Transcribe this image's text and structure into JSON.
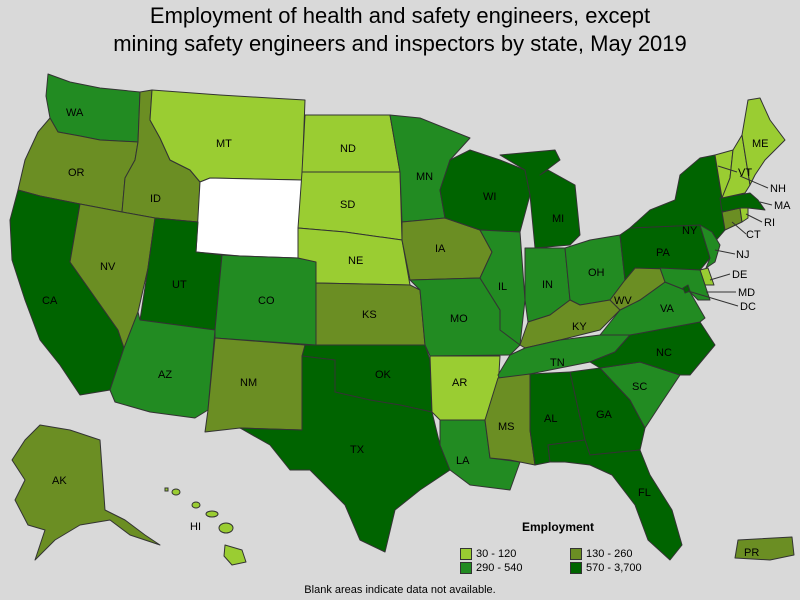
{
  "title": {
    "line1": "Employment of health and safety engineers, except",
    "line2": "mining safety engineers and inspectors by state, May 2019"
  },
  "colors": {
    "c1": "#9acd32",
    "c2": "#6b8e23",
    "c3": "#228b22",
    "c4": "#006400",
    "blank": "#ffffff",
    "border": "#333333"
  },
  "legend": {
    "title": "Employment",
    "items": [
      {
        "label": "30 - 120",
        "color": "#9acd32"
      },
      {
        "label": "130 - 260",
        "color": "#6b8e23"
      },
      {
        "label": "290 - 540",
        "color": "#228b22"
      },
      {
        "label": "570 - 3,700",
        "color": "#006400"
      }
    ]
  },
  "footnote": "Blank areas indicate data not available.",
  "states": [
    {
      "abbr": "WA",
      "bin": "c3"
    },
    {
      "abbr": "OR",
      "bin": "c2"
    },
    {
      "abbr": "CA",
      "bin": "c4"
    },
    {
      "abbr": "ID",
      "bin": "c2"
    },
    {
      "abbr": "NV",
      "bin": "c2"
    },
    {
      "abbr": "MT",
      "bin": "c1"
    },
    {
      "abbr": "WY",
      "bin": "blank"
    },
    {
      "abbr": "UT",
      "bin": "c4"
    },
    {
      "abbr": "AZ",
      "bin": "c3"
    },
    {
      "abbr": "CO",
      "bin": "c3"
    },
    {
      "abbr": "NM",
      "bin": "c2"
    },
    {
      "abbr": "ND",
      "bin": "c1"
    },
    {
      "abbr": "SD",
      "bin": "c1"
    },
    {
      "abbr": "NE",
      "bin": "c1"
    },
    {
      "abbr": "KS",
      "bin": "c2"
    },
    {
      "abbr": "OK",
      "bin": "c4"
    },
    {
      "abbr": "TX",
      "bin": "c4"
    },
    {
      "abbr": "MN",
      "bin": "c3"
    },
    {
      "abbr": "IA",
      "bin": "c2"
    },
    {
      "abbr": "MO",
      "bin": "c3"
    },
    {
      "abbr": "AR",
      "bin": "c1"
    },
    {
      "abbr": "LA",
      "bin": "c3"
    },
    {
      "abbr": "WI",
      "bin": "c4"
    },
    {
      "abbr": "IL",
      "bin": "c3"
    },
    {
      "abbr": "MI",
      "bin": "c4"
    },
    {
      "abbr": "IN",
      "bin": "c3"
    },
    {
      "abbr": "OH",
      "bin": "c3"
    },
    {
      "abbr": "KY",
      "bin": "c2"
    },
    {
      "abbr": "TN",
      "bin": "c3"
    },
    {
      "abbr": "MS",
      "bin": "c2"
    },
    {
      "abbr": "AL",
      "bin": "c4"
    },
    {
      "abbr": "GA",
      "bin": "c4"
    },
    {
      "abbr": "FL",
      "bin": "c4"
    },
    {
      "abbr": "SC",
      "bin": "c3"
    },
    {
      "abbr": "NC",
      "bin": "c4"
    },
    {
      "abbr": "VA",
      "bin": "c3"
    },
    {
      "abbr": "WV",
      "bin": "c2"
    },
    {
      "abbr": "PA",
      "bin": "c4"
    },
    {
      "abbr": "NY",
      "bin": "c4"
    },
    {
      "abbr": "NJ",
      "bin": "c3"
    },
    {
      "abbr": "DE",
      "bin": "c1"
    },
    {
      "abbr": "MD",
      "bin": "c3"
    },
    {
      "abbr": "DC",
      "bin": "c4"
    },
    {
      "abbr": "CT",
      "bin": "c2"
    },
    {
      "abbr": "RI",
      "bin": "c1"
    },
    {
      "abbr": "MA",
      "bin": "c4"
    },
    {
      "abbr": "VT",
      "bin": "c1"
    },
    {
      "abbr": "NH",
      "bin": "c1"
    },
    {
      "abbr": "ME",
      "bin": "c1"
    },
    {
      "abbr": "AK",
      "bin": "c2"
    },
    {
      "abbr": "HI",
      "bin": "c1"
    },
    {
      "abbr": "PR",
      "bin": "c2"
    }
  ]
}
